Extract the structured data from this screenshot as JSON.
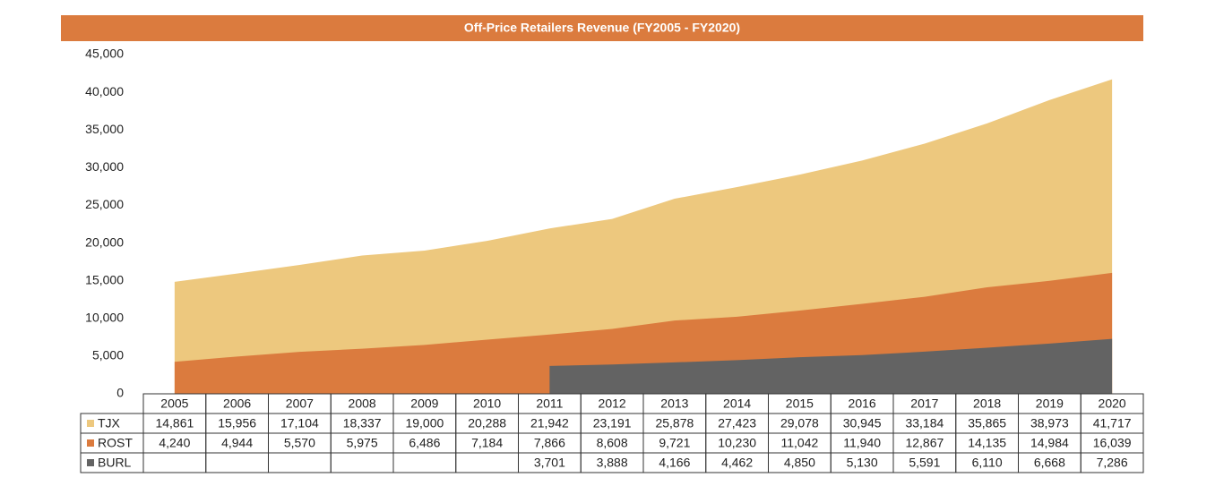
{
  "chart_data": {
    "type": "area",
    "title": "Off-Price Retailers Revenue (FY2005 - FY2020)",
    "categories": [
      "2005",
      "2006",
      "2007",
      "2008",
      "2009",
      "2010",
      "2011",
      "2012",
      "2013",
      "2014",
      "2015",
      "2016",
      "2017",
      "2018",
      "2019",
      "2020"
    ],
    "series": [
      {
        "name": "TJX",
        "color": "#EDC87E",
        "values": [
          14861,
          15956,
          17104,
          18337,
          19000,
          20288,
          21942,
          23191,
          25878,
          27423,
          29078,
          30945,
          33184,
          35865,
          38973,
          41717
        ],
        "value_labels": [
          "14,861",
          "15,956",
          "17,104",
          "18,337",
          "19,000",
          "20,288",
          "21,942",
          "23,191",
          "25,878",
          "27,423",
          "29,078",
          "30,945",
          "33,184",
          "35,865",
          "38,973",
          "41,717"
        ]
      },
      {
        "name": "ROST",
        "color": "#DB7B3E",
        "values": [
          4240,
          4944,
          5570,
          5975,
          6486,
          7184,
          7866,
          8608,
          9721,
          10230,
          11042,
          11940,
          12867,
          14135,
          14984,
          16039
        ],
        "value_labels": [
          "4,240",
          "4,944",
          "5,570",
          "5,975",
          "6,486",
          "7,184",
          "7,866",
          "8,608",
          "9,721",
          "10,230",
          "11,042",
          "11,940",
          "12,867",
          "14,135",
          "14,984",
          "16,039"
        ]
      },
      {
        "name": "BURL",
        "color": "#636363",
        "values": [
          null,
          null,
          null,
          null,
          null,
          null,
          3701,
          3888,
          4166,
          4462,
          4850,
          5130,
          5591,
          6110,
          6668,
          7286
        ],
        "value_labels": [
          null,
          null,
          null,
          null,
          null,
          null,
          "3,701",
          "3,888",
          "4,166",
          "4,462",
          "4,850",
          "5,130",
          "5,591",
          "6,110",
          "6,668",
          "7,286"
        ]
      }
    ],
    "ylim": [
      0,
      45000
    ],
    "yticks": [
      0,
      {
        "value": 5000,
        "label": "5,000"
      },
      {
        "value": 10000,
        "label": "10,000"
      },
      {
        "value": 15000,
        "label": "15,000"
      },
      {
        "value": 20000,
        "label": "20,000"
      },
      {
        "value": 25000,
        "label": "25,000"
      },
      {
        "value": 30000,
        "label": "30,000"
      },
      {
        "value": 35000,
        "label": "35,000"
      },
      {
        "value": 40000,
        "label": "40,000"
      },
      {
        "value": 45000,
        "label": "45,000"
      }
    ],
    "title_color": "#DB7B3E"
  }
}
